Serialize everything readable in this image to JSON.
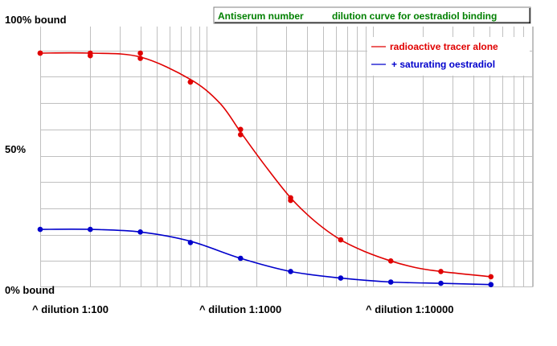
{
  "chart_data": {
    "type": "line",
    "title_part1": "Antiserum number",
    "title_part2": "dilution curve for oestradiol binding",
    "title_color": "#008000",
    "y_labels": [
      "100% bound",
      "50%",
      "0% bound"
    ],
    "x_labels": [
      "^ dilution 1:100",
      "^ dilution 1:1000",
      "^ dilution 1:10000"
    ],
    "x_scale": "log",
    "x_tick_values": [
      100,
      1000,
      10000
    ],
    "xlim": [
      100,
      50000
    ],
    "ylim": [
      0,
      100
    ],
    "grid": true,
    "legend_placement": "top-right",
    "series": [
      {
        "name": "radioactive tracer alone",
        "color": "#e00000",
        "points": [
          {
            "x": 100,
            "y": 89
          },
          {
            "x": 100,
            "y": 89
          },
          {
            "x": 200,
            "y": 89
          },
          {
            "x": 200,
            "y": 88
          },
          {
            "x": 400,
            "y": 89
          },
          {
            "x": 400,
            "y": 87
          },
          {
            "x": 800,
            "y": 78
          },
          {
            "x": 800,
            "y": 78
          },
          {
            "x": 1600,
            "y": 60
          },
          {
            "x": 1600,
            "y": 58
          },
          {
            "x": 3200,
            "y": 34
          },
          {
            "x": 3200,
            "y": 33
          },
          {
            "x": 6400,
            "y": 18
          },
          {
            "x": 12800,
            "y": 10
          },
          {
            "x": 25600,
            "y": 6
          },
          {
            "x": 51200,
            "y": 4
          }
        ],
        "curve": [
          {
            "x": 100,
            "y": 89
          },
          {
            "x": 200,
            "y": 89
          },
          {
            "x": 400,
            "y": 87.5
          },
          {
            "x": 800,
            "y": 79
          },
          {
            "x": 1200,
            "y": 70
          },
          {
            "x": 1600,
            "y": 59
          },
          {
            "x": 2200,
            "y": 47
          },
          {
            "x": 3200,
            "y": 34
          },
          {
            "x": 4500,
            "y": 25
          },
          {
            "x": 6400,
            "y": 18
          },
          {
            "x": 9000,
            "y": 13.5
          },
          {
            "x": 12800,
            "y": 10
          },
          {
            "x": 18000,
            "y": 7.5
          },
          {
            "x": 25600,
            "y": 6
          },
          {
            "x": 51200,
            "y": 4
          }
        ]
      },
      {
        "name": "+ saturating oestradiol",
        "color": "#0000cc",
        "points": [
          {
            "x": 100,
            "y": 22
          },
          {
            "x": 200,
            "y": 22
          },
          {
            "x": 400,
            "y": 21
          },
          {
            "x": 800,
            "y": 17
          },
          {
            "x": 1600,
            "y": 11
          },
          {
            "x": 3200,
            "y": 6
          },
          {
            "x": 6400,
            "y": 3.5
          },
          {
            "x": 12800,
            "y": 2
          },
          {
            "x": 25600,
            "y": 1.5
          },
          {
            "x": 51200,
            "y": 1
          }
        ],
        "curve": [
          {
            "x": 100,
            "y": 22
          },
          {
            "x": 200,
            "y": 22
          },
          {
            "x": 400,
            "y": 21
          },
          {
            "x": 800,
            "y": 17.5
          },
          {
            "x": 1600,
            "y": 11
          },
          {
            "x": 3200,
            "y": 6
          },
          {
            "x": 6400,
            "y": 3.5
          },
          {
            "x": 12800,
            "y": 2
          },
          {
            "x": 25600,
            "y": 1.5
          },
          {
            "x": 51200,
            "y": 1
          }
        ]
      }
    ]
  }
}
